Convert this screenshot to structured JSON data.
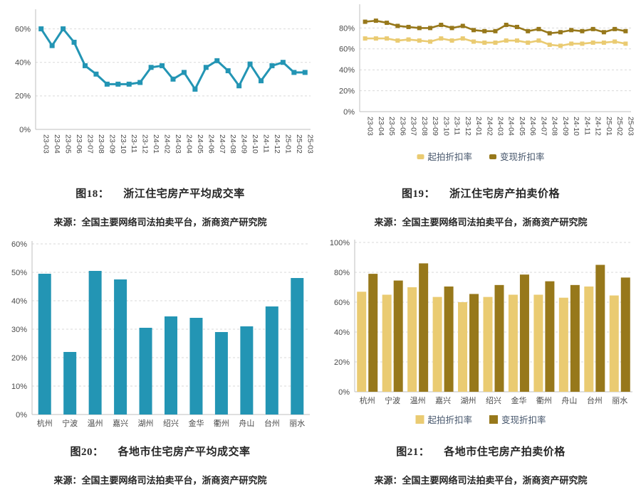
{
  "page": {
    "background": "#ffffff"
  },
  "colors": {
    "teal": "#2395B4",
    "light_gold": "#EACB72",
    "dark_gold": "#97781B",
    "axis_text": "#4a4a4a",
    "axis_line": "#bfbfbf",
    "gridline": "#d9d9d9",
    "legend_text": "#44546A",
    "caption_text": "#262626"
  },
  "figures": [
    {
      "label": "图18：",
      "title": "浙江住宅房产平均成交率",
      "source": "来源：全国主要网络司法拍卖平台，浙商资产研究院"
    },
    {
      "label": "图19：",
      "title": "浙江住宅房产拍卖价格",
      "source": "来源：全国主要网络司法拍卖平台，浙商资产研究院"
    },
    {
      "label": "图20：",
      "title": "各地市住宅房产平均成交率",
      "source": "来源：全国主要网络司法拍卖平台，浙商资产研究院"
    },
    {
      "label": "图21：",
      "title": "各地市住宅房产拍卖价格",
      "source": "来源：全国主要网络司法拍卖平台，浙商资产研究院"
    }
  ],
  "chart_data": [
    {
      "type": "line",
      "title": "浙江住宅房产平均成交率",
      "x": [
        "23-03",
        "23-04",
        "23-05",
        "23-06",
        "23-07",
        "23-08",
        "23-09",
        "23-10",
        "23-11",
        "23-12",
        "24-01",
        "24-02",
        "24-03",
        "24-04",
        "24-05",
        "24-06",
        "24-07",
        "24-08",
        "24-09",
        "24-10",
        "24-11",
        "24-12",
        "25-01",
        "25-02",
        "25-03"
      ],
      "x_rotate": 90,
      "series": [
        {
          "color": "#2395B4",
          "values": [
            60,
            50,
            60,
            52,
            38,
            33,
            27,
            27,
            27,
            28,
            37,
            38,
            30,
            34,
            24,
            37,
            41,
            35,
            26,
            39,
            29,
            38,
            40,
            34,
            34
          ]
        }
      ],
      "ylim": [
        0,
        70
      ],
      "yticks": [
        0,
        20,
        40,
        60
      ],
      "ytick_format": "percent",
      "grid": "dashed-horizontal",
      "legend": false
    },
    {
      "type": "line",
      "title": "浙江住宅房产拍卖价格",
      "x": [
        "23-03",
        "23-04",
        "23-05",
        "23-06",
        "23-07",
        "23-08",
        "23-09",
        "23-10",
        "23-11",
        "23-12",
        "24-01",
        "24-02",
        "24-03",
        "24-04",
        "24-05",
        "24-06",
        "24-07",
        "24-08",
        "24-09",
        "24-10",
        "24-11",
        "24-12",
        "25-01",
        "25-02",
        "25-03"
      ],
      "x_rotate": 90,
      "series": [
        {
          "name": "起拍折扣率",
          "color": "#EACB72",
          "values": [
            70,
            70,
            70,
            68,
            69,
            68,
            67,
            70,
            68,
            70,
            67,
            66,
            66,
            68,
            68,
            66,
            68,
            64,
            63,
            65,
            65,
            66,
            66,
            67,
            65
          ]
        },
        {
          "name": "变现折扣率",
          "color": "#97781B",
          "values": [
            86,
            87,
            85,
            82,
            81,
            80,
            80,
            83,
            80,
            82,
            78,
            77,
            77,
            83,
            81,
            77,
            79,
            75,
            76,
            78,
            77,
            79,
            76,
            79,
            77
          ]
        }
      ],
      "ylim": [
        0,
        100
      ],
      "yticks": [
        0,
        20,
        40,
        60,
        80
      ],
      "ytick_format": "percent",
      "grid": "dashed-horizontal",
      "legend": true,
      "legend_position": "bottom"
    },
    {
      "type": "bar",
      "title": "各地市住宅房产平均成交率",
      "x": [
        "杭州",
        "宁波",
        "温州",
        "嘉兴",
        "湖州",
        "绍兴",
        "金华",
        "衢州",
        "舟山",
        "台州",
        "丽水"
      ],
      "x_rotate": 0,
      "series": [
        {
          "color": "#2395B4",
          "values": [
            49.5,
            22,
            50.5,
            47.5,
            30.5,
            34.5,
            34,
            29,
            31,
            38,
            48
          ]
        }
      ],
      "ylim": [
        0,
        60
      ],
      "yticks": [
        0,
        10,
        20,
        30,
        40,
        50,
        60
      ],
      "ytick_format": "percent",
      "grid": "dashed-horizontal",
      "legend": false
    },
    {
      "type": "bar",
      "title": "各地市住宅房产拍卖价格",
      "x": [
        "杭州",
        "宁波",
        "温州",
        "嘉兴",
        "湖州",
        "绍兴",
        "金华",
        "衢州",
        "舟山",
        "台州",
        "丽水"
      ],
      "x_rotate": 0,
      "series": [
        {
          "name": "起拍折扣率",
          "color": "#EACB72",
          "values": [
            67,
            65,
            70,
            63.5,
            60,
            63.5,
            65,
            65,
            63,
            70.5,
            64.5
          ]
        },
        {
          "name": "变现折扣率",
          "color": "#97781B",
          "values": [
            79,
            74.5,
            86,
            70.5,
            65.5,
            71.5,
            78.5,
            74,
            71.5,
            85,
            76.5
          ]
        }
      ],
      "ylim": [
        0,
        100
      ],
      "yticks": [
        0,
        20,
        40,
        60,
        80,
        100
      ],
      "ytick_format": "percent",
      "grid": "dashed-horizontal",
      "legend": true,
      "legend_position": "bottom"
    }
  ]
}
